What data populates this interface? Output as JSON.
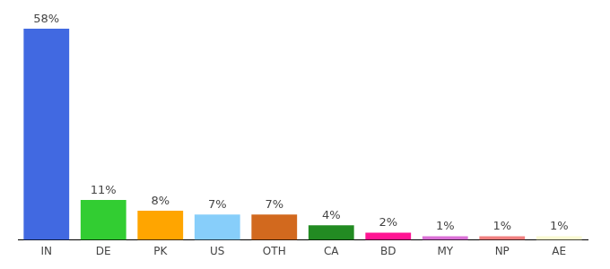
{
  "chart_data": {
    "type": "bar",
    "categories": [
      "IN",
      "DE",
      "PK",
      "US",
      "OTH",
      "CA",
      "BD",
      "MY",
      "NP",
      "AE"
    ],
    "values": [
      58,
      11,
      8,
      7,
      7,
      4,
      2,
      1,
      1,
      1
    ],
    "value_labels": [
      "58%",
      "11%",
      "8%",
      "7%",
      "7%",
      "4%",
      "2%",
      "1%",
      "1%",
      "1%"
    ],
    "colors": [
      "#4169e1",
      "#32cd32",
      "#ffa500",
      "#87cefa",
      "#d2691e",
      "#228b22",
      "#ff1493",
      "#da70d6",
      "#f08080",
      "#fafad2"
    ],
    "ylim": [
      0,
      58
    ],
    "grid": false,
    "data_labels": true,
    "tick_labels": "x"
  }
}
